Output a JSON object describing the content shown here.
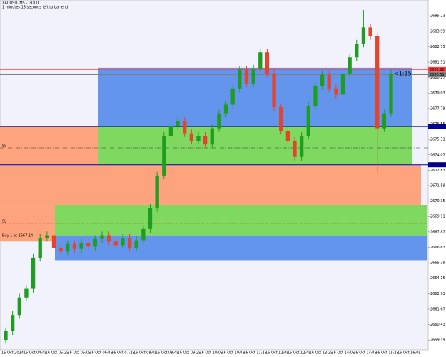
{
  "chart_data": {
    "type": "candlestick",
    "title": "XAUUSD, M5 - GOLD",
    "subtitle": "1 minutes 15 seconds left to bar end",
    "countdown": "<1:15",
    "up_color": "#1e9e1e",
    "down_color": "#e5432b",
    "open": [
      2659.2,
      2659.9,
      2661.2,
      2662.6,
      2663.3,
      2665.8,
      2667.4,
      2667.6,
      2666.6,
      2666.3,
      2666.9,
      2666.5,
      2667.0,
      2666.7,
      2667.3,
      2667.6,
      2667.1,
      2666.8,
      2667.4,
      2666.6,
      2667.2,
      2668.1,
      2669.8,
      2672.4,
      2675.6,
      2676.4,
      2676.8,
      2675.8,
      2675.2,
      2675.6,
      2674.9,
      2676.2,
      2677.4,
      2678.1,
      2679.4,
      2680.9,
      2679.8,
      2681.0,
      2682.3,
      2680.6,
      2677.9,
      2676.0,
      2675.2,
      2673.9,
      2675.6,
      2678.0,
      2679.6,
      2680.5,
      2679.4,
      2678.9,
      2680.6,
      2681.9,
      2683.0,
      2684.3,
      2683.6,
      2676.2,
      2677.4
    ],
    "high": [
      2660.2,
      2661.5,
      2662.9,
      2663.6,
      2666.1,
      2667.7,
      2667.9,
      2667.9,
      2666.9,
      2667.2,
      2667.2,
      2667.3,
      2667.3,
      2667.6,
      2667.9,
      2667.9,
      2667.4,
      2667.7,
      2667.7,
      2667.5,
      2668.4,
      2670.1,
      2672.7,
      2675.9,
      2676.7,
      2677.1,
      2677.1,
      2676.1,
      2675.9,
      2675.9,
      2676.5,
      2677.7,
      2678.4,
      2679.7,
      2681.2,
      2681.2,
      2681.3,
      2682.6,
      2682.6,
      2680.9,
      2678.2,
      2676.3,
      2675.5,
      2675.9,
      2678.3,
      2679.9,
      2680.8,
      2680.8,
      2679.7,
      2680.9,
      2682.2,
      2683.3,
      2685.7,
      2684.6,
      2683.9,
      2677.7,
      2680.9
    ],
    "low": [
      2658.9,
      2659.6,
      2660.9,
      2662.3,
      2663.0,
      2665.5,
      2667.1,
      2666.3,
      2666.0,
      2666.0,
      2666.2,
      2666.2,
      2666.4,
      2666.4,
      2667.0,
      2666.8,
      2666.5,
      2666.5,
      2666.3,
      2666.3,
      2666.9,
      2667.8,
      2669.5,
      2672.1,
      2675.3,
      2676.1,
      2675.5,
      2674.9,
      2674.9,
      2674.6,
      2674.6,
      2675.9,
      2677.1,
      2677.8,
      2679.1,
      2679.5,
      2679.5,
      2680.7,
      2680.3,
      2677.6,
      2675.7,
      2674.9,
      2673.6,
      2673.6,
      2675.3,
      2677.7,
      2679.3,
      2679.1,
      2678.6,
      2678.6,
      2680.3,
      2681.6,
      2682.7,
      2683.3,
      2672.6,
      2675.9,
      2677.1
    ],
    "close": [
      2659.9,
      2661.2,
      2662.6,
      2663.3,
      2665.8,
      2667.4,
      2667.6,
      2666.6,
      2666.3,
      2666.9,
      2666.5,
      2667.0,
      2666.7,
      2667.3,
      2667.6,
      2667.1,
      2666.8,
      2667.4,
      2666.6,
      2667.2,
      2668.1,
      2669.8,
      2672.4,
      2675.6,
      2676.4,
      2676.8,
      2675.8,
      2675.2,
      2675.6,
      2674.9,
      2676.2,
      2677.4,
      2678.1,
      2679.4,
      2680.9,
      2679.8,
      2681.0,
      2682.3,
      2680.6,
      2677.9,
      2676.0,
      2675.2,
      2673.9,
      2675.6,
      2678.0,
      2679.6,
      2680.5,
      2679.4,
      2678.9,
      2680.6,
      2681.9,
      2683.0,
      2684.3,
      2683.6,
      2676.2,
      2677.4,
      2680.6
    ],
    "ylim": [
      2658.4,
      2686.5
    ],
    "yticks": [
      2659.19,
      2660.43,
      2661.67,
      2662.91,
      2664.15,
      2665.39,
      2666.63,
      2667.87,
      2669.11,
      2670.35,
      2671.59,
      2672.83,
      2674.07,
      2675.31,
      2676.55,
      2677.79,
      2679.03,
      2680.27,
      2681.51,
      2682.75,
      2683.99,
      2685.23
    ],
    "xlabels": [
      "16 Oct 2024",
      "16 Oct 04:45",
      "16 Oct 05:25",
      "16 Oct 06:05",
      "16 Oct 06:45",
      "16 Oct 07:25",
      "16 Oct 08:05",
      "16 Oct 08:45",
      "16 Oct 09:25",
      "16 Oct 10:05",
      "16 Oct 10:45",
      "16 Oct 11:25",
      "16 Oct 12:05",
      "16 Oct 12:45",
      "16 Oct 13:25",
      "16 Oct 14:05",
      "16 Oct 14:45",
      "16 Oct 15:25",
      "16 Oct 16:05"
    ],
    "zones": [
      {
        "from": 2676.34,
        "to": 2673.27,
        "color": "#fda47e"
      },
      {
        "from": 2673.27,
        "to": 2670.04,
        "color": "#fda47e"
      },
      {
        "from": 2670.04,
        "to": 2667.1,
        "color": "#fda47e"
      },
      {
        "from": 2681.06,
        "to": 2676.34,
        "color": "#6495ed"
      },
      {
        "from": 2676.34,
        "to": 2673.27,
        "color": "#7fd85f"
      },
      {
        "from": 2670.04,
        "to": 2667.59,
        "color": "#7fd85f"
      },
      {
        "from": 2667.59,
        "to": 2665.6,
        "color": "#6495ed"
      }
    ],
    "levels": [
      {
        "value": 2680.92,
        "color": "#ff4040"
      },
      {
        "value": 2680.51,
        "color": "#808080"
      },
      {
        "value": 2676.34,
        "color": "#0000b0"
      },
      {
        "value": 2673.27,
        "color": "#0000b0"
      }
    ],
    "annotations": [
      "SL",
      "Buy 1 at 2667.14",
      "SL"
    ]
  }
}
